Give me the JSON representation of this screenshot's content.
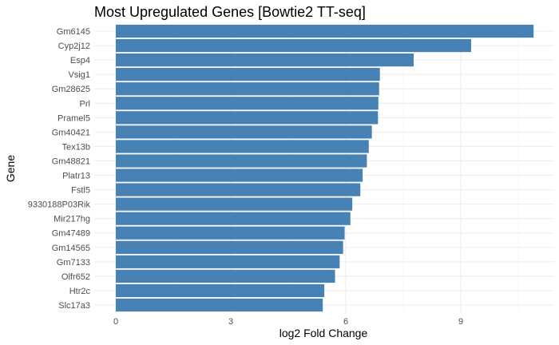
{
  "chart_data": {
    "type": "bar",
    "orientation": "horizontal",
    "title": "Most Upregulated Genes [Bowtie2 TT-seq]",
    "xlabel": "log2 Fold Change",
    "ylabel": "Gene",
    "xlim": [
      0,
      11.2
    ],
    "xticks": [
      0,
      3,
      6,
      9
    ],
    "grid": true,
    "bar_color": "#4682B4",
    "categories": [
      "Gm6145",
      "Cyp2j12",
      "Esp4",
      "Vsig1",
      "Gm28625",
      "Prl",
      "Pramel5",
      "Gm40421",
      "Tex13b",
      "Gm48821",
      "Platr13",
      "Fstl5",
      "9330188P03Rik",
      "Mir217hg",
      "Gm47489",
      "Gm14565",
      "Gm7133",
      "Olfr652",
      "Htr2c",
      "Slc17a3"
    ],
    "values": [
      10.9,
      9.27,
      7.77,
      6.89,
      6.87,
      6.85,
      6.84,
      6.68,
      6.6,
      6.55,
      6.44,
      6.38,
      6.17,
      6.12,
      5.97,
      5.93,
      5.84,
      5.72,
      5.44,
      5.4
    ]
  }
}
